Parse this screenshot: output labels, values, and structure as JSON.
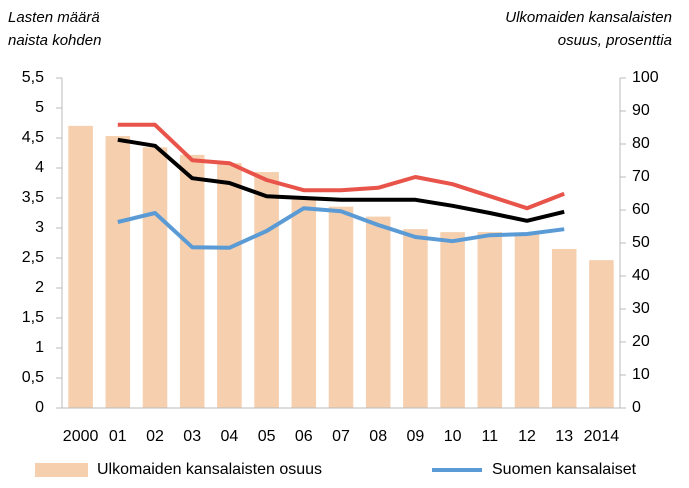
{
  "chart_data": {
    "type": "bar-line",
    "ylabel": [
      "Lasten määrä",
      "naista kohden"
    ],
    "y2label": [
      "Ulkomaiden kansalaisten",
      "osuus, prosenttia"
    ],
    "categories": [
      "2000",
      "01",
      "02",
      "03",
      "04",
      "05",
      "06",
      "07",
      "08",
      "09",
      "10",
      "11",
      "12",
      "13",
      "2014"
    ],
    "series": [
      {
        "name": "Ulkomaiden kansalaisten osuus",
        "type": "bar",
        "axis": "y2",
        "color": "#f5cfae",
        "values": [
          85.5,
          82.4,
          79,
          76.7,
          74.2,
          71.5,
          64,
          61,
          58,
          54.2,
          53.3,
          53.3,
          53,
          48.2,
          44.8
        ]
      },
      {
        "type": "line",
        "color": "#e8534a",
        "values": [
          null,
          4.72,
          4.72,
          4.13,
          4.08,
          3.8,
          3.63,
          3.63,
          3.67,
          3.85,
          3.73,
          3.53,
          3.33,
          3.57,
          null
        ]
      },
      {
        "type": "line",
        "color": "#000000",
        "values": [
          null,
          4.47,
          4.37,
          3.83,
          3.75,
          3.53,
          3.5,
          3.47,
          3.47,
          3.47,
          3.37,
          3.25,
          3.12,
          3.27,
          null
        ]
      },
      {
        "name": "Suomen kansalaiset",
        "type": "line",
        "color": "#5b9bd5",
        "values": [
          null,
          3.1,
          3.25,
          2.68,
          2.67,
          2.95,
          3.33,
          3.28,
          3.05,
          2.85,
          2.78,
          2.88,
          2.9,
          2.98,
          null
        ]
      }
    ],
    "ylim": [
      0,
      5.5
    ],
    "yticks": [
      0,
      {
        "value": 0.5,
        "label": "0,5"
      },
      1,
      {
        "value": 1.5,
        "label": "1,5"
      },
      2,
      {
        "value": 2.5,
        "label": "2,5"
      },
      3,
      {
        "value": 3.5,
        "label": "3,5"
      },
      4,
      {
        "value": 4.5,
        "label": "4,5"
      },
      5,
      {
        "value": 5.5,
        "label": "5,5"
      }
    ],
    "y2lim": [
      0,
      100
    ],
    "y2ticks": [
      0,
      10,
      20,
      30,
      40,
      50,
      60,
      70,
      80,
      90,
      100
    ],
    "grid": false,
    "legend": "bottom"
  }
}
